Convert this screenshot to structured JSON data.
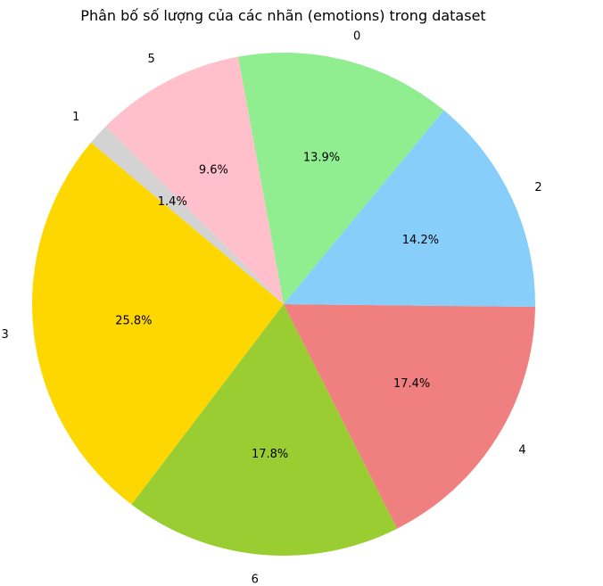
{
  "chart_data": {
    "type": "pie",
    "title": "Phân bố số lượng của các nhãn (emotions) trong dataset",
    "start_angle_deg": 140,
    "direction": "counterclockwise",
    "slices": [
      {
        "label": "3",
        "value": 25.8,
        "pct_label": "25.8%",
        "color": "#FFD700"
      },
      {
        "label": "6",
        "value": 17.8,
        "pct_label": "17.8%",
        "color": "#9ACD32"
      },
      {
        "label": "4",
        "value": 17.4,
        "pct_label": "17.4%",
        "color": "#F08080"
      },
      {
        "label": "2",
        "value": 14.2,
        "pct_label": "14.2%",
        "color": "#87CEFA"
      },
      {
        "label": "0",
        "value": 13.9,
        "pct_label": "13.9%",
        "color": "#90EE90"
      },
      {
        "label": "5",
        "value": 9.6,
        "pct_label": "9.6%",
        "color": "#FFC0CB"
      },
      {
        "label": "1",
        "value": 1.4,
        "pct_label": "1.4%",
        "color": "#D3D3D3"
      }
    ]
  }
}
